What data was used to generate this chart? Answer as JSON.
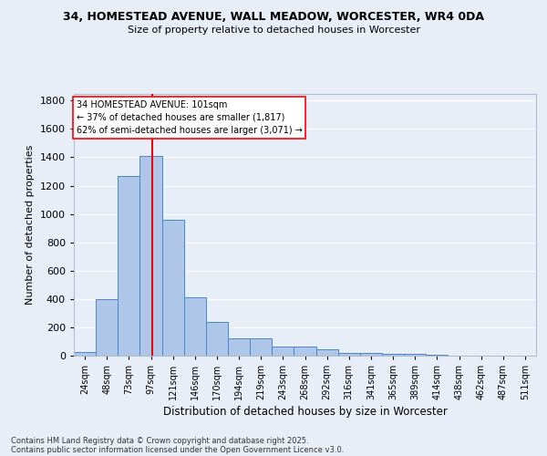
{
  "title_line1": "34, HOMESTEAD AVENUE, WALL MEADOW, WORCESTER, WR4 0DA",
  "title_line2": "Size of property relative to detached houses in Worcester",
  "xlabel": "Distribution of detached houses by size in Worcester",
  "ylabel": "Number of detached properties",
  "categories": [
    "24sqm",
    "48sqm",
    "73sqm",
    "97sqm",
    "121sqm",
    "146sqm",
    "170sqm",
    "194sqm",
    "219sqm",
    "243sqm",
    "268sqm",
    "292sqm",
    "316sqm",
    "341sqm",
    "365sqm",
    "389sqm",
    "414sqm",
    "438sqm",
    "462sqm",
    "487sqm",
    "511sqm"
  ],
  "values": [
    25,
    400,
    1265,
    1410,
    960,
    415,
    235,
    125,
    125,
    65,
    65,
    43,
    20,
    20,
    15,
    10,
    5,
    2,
    1,
    0,
    0
  ],
  "bar_color": "#aec6e8",
  "bar_edge_color": "#4a86c8",
  "background_color": "#e8eef8",
  "grid_color": "#ffffff",
  "vline_color": "red",
  "vline_x_index": 3,
  "annotation_text": "34 HOMESTEAD AVENUE: 101sqm\n← 37% of detached houses are smaller (1,817)\n62% of semi-detached houses are larger (3,071) →",
  "ylim": [
    0,
    1850
  ],
  "yticks": [
    0,
    200,
    400,
    600,
    800,
    1000,
    1200,
    1400,
    1600,
    1800
  ],
  "fig_facecolor": "#e8eef8",
  "footer_line1": "Contains HM Land Registry data © Crown copyright and database right 2025.",
  "footer_line2": "Contains public sector information licensed under the Open Government Licence v3.0."
}
